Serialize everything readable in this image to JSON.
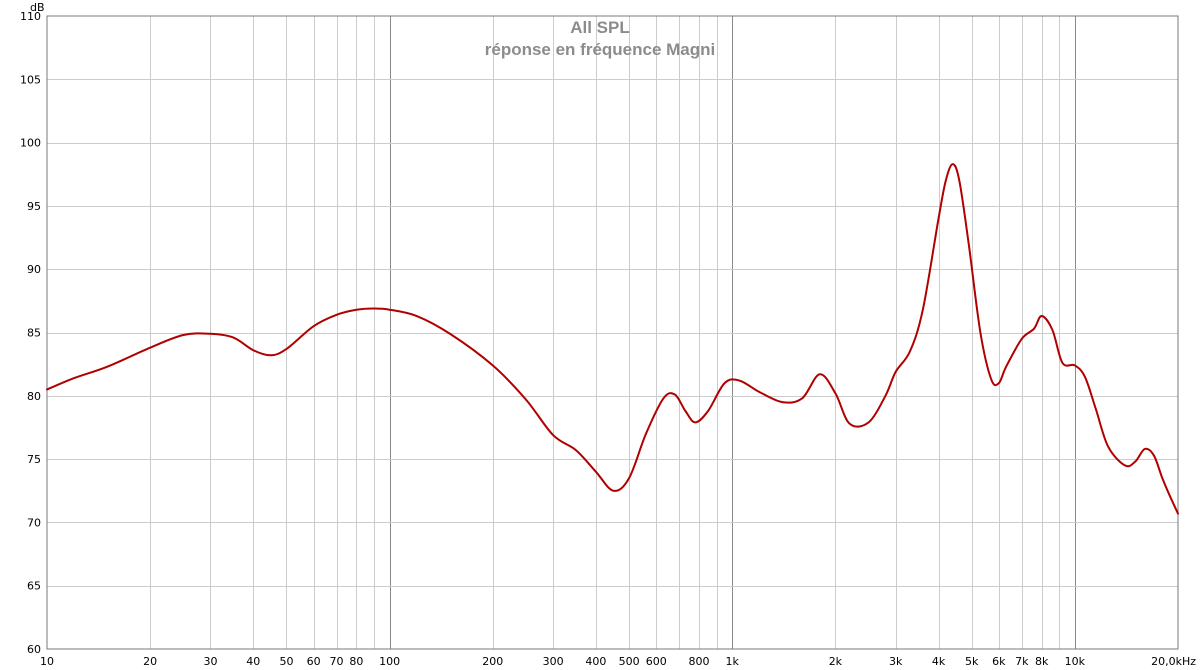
{
  "chart_data": {
    "type": "line",
    "title": "All SPL",
    "subtitle": "réponse en fréquence Magni",
    "ylabel": "dB",
    "xlabel": "",
    "x_scale": "log",
    "xlim": [
      10,
      20000
    ],
    "ylim": [
      60,
      110
    ],
    "grid": true,
    "y_ticks": [
      60,
      65,
      70,
      75,
      80,
      85,
      90,
      95,
      100,
      105,
      110
    ],
    "y_tick_labels": [
      "60",
      "65",
      "70",
      "75",
      "80",
      "85",
      "90",
      "95",
      "100",
      "105",
      "110"
    ],
    "x_ticks": [
      10,
      20,
      30,
      40,
      50,
      60,
      70,
      80,
      100,
      200,
      300,
      400,
      500,
      600,
      800,
      1000,
      2000,
      3000,
      4000,
      5000,
      6000,
      7000,
      8000,
      10000,
      20000
    ],
    "x_tick_labels": [
      "10",
      "20",
      "30",
      "40",
      "50",
      "60",
      "70",
      "80",
      "100",
      "200",
      "300",
      "400",
      "500",
      "600",
      "800",
      "1k",
      "2k",
      "3k",
      "4k",
      "5k",
      "6k",
      "7k",
      "8k",
      "10k",
      "20,0kHz"
    ],
    "series": [
      {
        "color": "#b00000",
        "x": [
          10,
          12,
          15,
          20,
          25,
          30,
          35,
          40,
          45,
          50,
          60,
          70,
          80,
          90,
          100,
          120,
          150,
          200,
          250,
          300,
          350,
          400,
          450,
          500,
          560,
          630,
          680,
          730,
          780,
          850,
          950,
          1050,
          1200,
          1400,
          1600,
          1800,
          2000,
          2200,
          2500,
          2800,
          3000,
          3300,
          3600,
          4000,
          4200,
          4400,
          4600,
          4900,
          5300,
          5700,
          6000,
          6300,
          7000,
          7600,
          8000,
          8600,
          9200,
          10000,
          10700,
          11500,
          12500,
          14000,
          15000,
          16000,
          17000,
          18000,
          19000,
          20000
        ],
        "y": [
          80.5,
          81.4,
          82.3,
          83.8,
          84.8,
          84.9,
          84.6,
          83.6,
          83.2,
          83.7,
          85.5,
          86.4,
          86.8,
          86.9,
          86.8,
          86.3,
          84.9,
          82.4,
          79.7,
          76.9,
          75.7,
          74.0,
          72.5,
          73.5,
          77.0,
          79.8,
          80.1,
          78.8,
          77.9,
          78.8,
          81.0,
          81.2,
          80.3,
          79.5,
          79.8,
          81.7,
          80.2,
          77.8,
          77.9,
          80.0,
          81.9,
          83.5,
          86.8,
          94.0,
          97.0,
          98.3,
          97.0,
          92.0,
          85.0,
          81.3,
          81.0,
          82.3,
          84.5,
          85.3,
          86.3,
          85.2,
          82.6,
          82.4,
          81.5,
          79.0,
          76.0,
          74.5,
          74.8,
          75.8,
          75.3,
          73.5,
          72.0,
          70.7
        ]
      }
    ]
  }
}
